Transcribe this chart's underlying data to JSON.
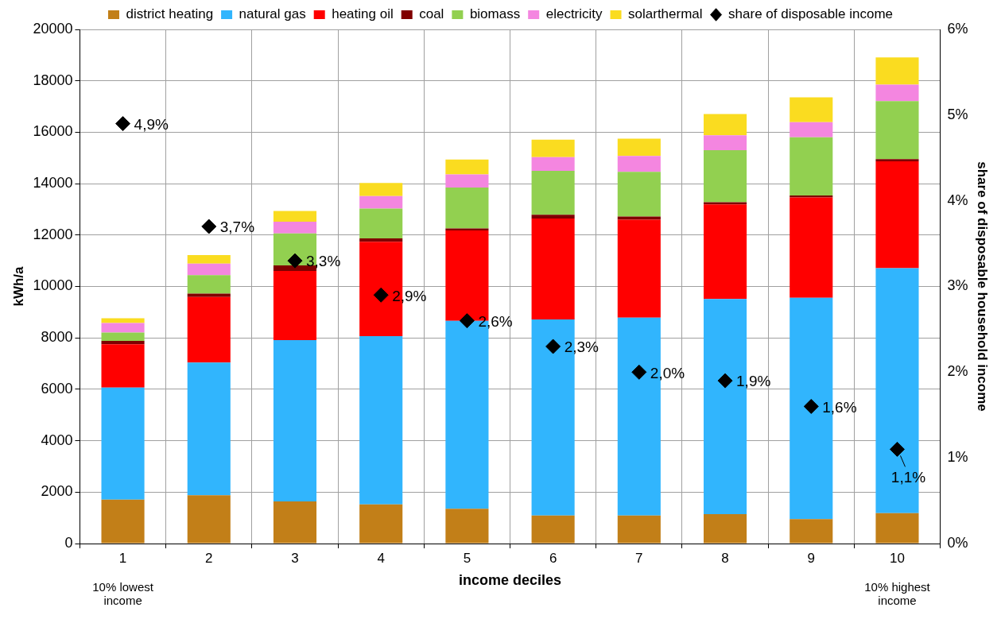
{
  "chart_data": {
    "type": "bar",
    "stacked": true,
    "xlabel": "income deciles",
    "ylabel": "kWh/a",
    "y2label": "share of disposable household income",
    "categories": [
      "1",
      "2",
      "3",
      "4",
      "5",
      "6",
      "7",
      "8",
      "9",
      "10"
    ],
    "series": [
      {
        "name": "district heating",
        "color": "#c27f18",
        "values": [
          1710,
          1880,
          1640,
          1520,
          1350,
          1090,
          1090,
          1140,
          950,
          1180
        ]
      },
      {
        "name": "natural gas",
        "color": "#31b5fd",
        "values": [
          4360,
          5160,
          6270,
          6550,
          7310,
          7630,
          7700,
          8370,
          8610,
          9530
        ]
      },
      {
        "name": "heating oil",
        "color": "#ff0000",
        "values": [
          1680,
          2550,
          2690,
          3670,
          3520,
          3920,
          3810,
          3680,
          3900,
          4160
        ]
      },
      {
        "name": "coal",
        "color": "#800000",
        "values": [
          130,
          130,
          220,
          130,
          80,
          150,
          120,
          90,
          80,
          80
        ]
      },
      {
        "name": "biomass",
        "color": "#92d050",
        "values": [
          330,
          720,
          1240,
          1160,
          1590,
          1710,
          1740,
          2020,
          2260,
          2260
        ]
      },
      {
        "name": "electricity",
        "color": "#f486e0",
        "values": [
          370,
          450,
          460,
          490,
          510,
          530,
          620,
          580,
          590,
          640
        ]
      },
      {
        "name": "solarthermal",
        "color": "#fadc20",
        "values": [
          180,
          330,
          420,
          510,
          580,
          680,
          670,
          830,
          970,
          1060
        ]
      },
      {
        "name": "share of disposable income",
        "type": "scatter",
        "axis": "y2",
        "marker": "diamond",
        "color": "#000000",
        "x": [
          "1",
          "2",
          "3",
          "4",
          "5",
          "6",
          "7",
          "8",
          "9",
          "10"
        ],
        "values": [
          4.9,
          3.7,
          3.3,
          2.9,
          2.6,
          2.3,
          2.0,
          1.9,
          1.6,
          1.1
        ],
        "value_labels": [
          "4,9%",
          "3,7%",
          "3,3%",
          "2,9%",
          "2,6%",
          "2,3%",
          "2,0%",
          "1,9%",
          "1,6%",
          "1,1%"
        ]
      }
    ],
    "ylim": [
      0,
      20000
    ],
    "yticks": [
      0,
      2000,
      4000,
      6000,
      8000,
      10000,
      12000,
      14000,
      16000,
      18000,
      20000
    ],
    "y2lim": [
      0,
      6
    ],
    "y2ticks": [
      {
        "value": 0,
        "label": "0%"
      },
      {
        "value": 1,
        "label": "1%"
      },
      {
        "value": 2,
        "label": "2%"
      },
      {
        "value": 3,
        "label": "3%"
      },
      {
        "value": 4,
        "label": "4%"
      },
      {
        "value": 5,
        "label": "5%"
      },
      {
        "value": 6,
        "label": "6%"
      }
    ],
    "grid": true,
    "legend": "top",
    "annotations": [
      "10% lowest income",
      "10% highest income"
    ]
  }
}
